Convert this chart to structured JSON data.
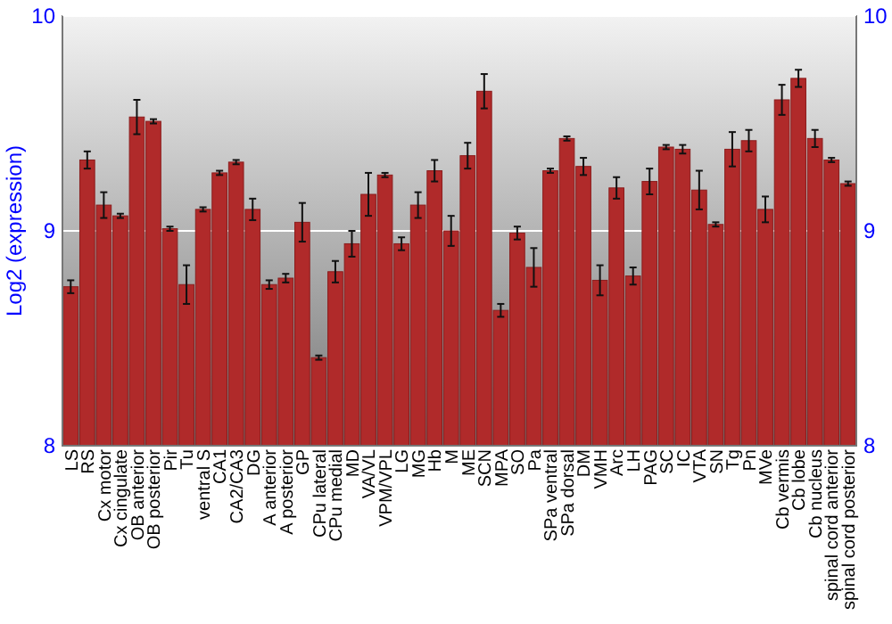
{
  "chart_data": {
    "type": "bar",
    "ylabel": "Log2 (expression)",
    "categories": [
      "LS",
      "RS",
      "Cx motor",
      "Cx cingulate",
      "OB anterior",
      "OB posterior",
      "Pir",
      "Tu",
      "ventral S",
      "CA1",
      "CA2/CA3",
      "DG",
      "A anterior",
      "A posterior",
      "GP",
      "CPu lateral",
      "CPu medial",
      "MD",
      "VA/VL",
      "VPM/VPL",
      "LG",
      "MG",
      "Hb",
      "M",
      "ME",
      "SCN",
      "MPA",
      "SO",
      "Pa",
      "SPa ventral",
      "SPa dorsal",
      "DM",
      "VMH",
      "Arc",
      "LH",
      "PAG",
      "SC",
      "IC",
      "VTA",
      "SN",
      "Tg",
      "Pn",
      "MVe",
      "Cb vermis",
      "Cb lobe",
      "Cb nucleus",
      "spinal cord anterior",
      "spinal cord posterior"
    ],
    "values": [
      8.74,
      9.33,
      9.12,
      9.07,
      9.53,
      9.51,
      9.01,
      8.75,
      9.1,
      9.27,
      9.32,
      9.1,
      8.75,
      8.78,
      9.04,
      8.41,
      8.81,
      8.94,
      9.17,
      9.26,
      8.94,
      9.12,
      9.28,
      9.0,
      9.35,
      9.65,
      8.63,
      8.99,
      8.83,
      9.28,
      9.43,
      9.3,
      8.77,
      9.2,
      8.79,
      9.23,
      9.39,
      9.38,
      9.19,
      9.03,
      9.38,
      9.42,
      9.1,
      9.61,
      9.71,
      9.43,
      9.33,
      9.22
    ],
    "errors": [
      0.03,
      0.04,
      0.06,
      0.01,
      0.08,
      0.01,
      0.01,
      0.09,
      0.01,
      0.01,
      0.01,
      0.05,
      0.02,
      0.02,
      0.09,
      0.01,
      0.05,
      0.06,
      0.1,
      0.01,
      0.03,
      0.06,
      0.05,
      0.07,
      0.06,
      0.08,
      0.03,
      0.03,
      0.09,
      0.01,
      0.01,
      0.04,
      0.07,
      0.05,
      0.04,
      0.06,
      0.01,
      0.02,
      0.09,
      0.01,
      0.08,
      0.05,
      0.06,
      0.07,
      0.04,
      0.04,
      0.01,
      0.01
    ],
    "color": "#b02a2a",
    "ylim": [
      8,
      10
    ],
    "yticks": [
      8,
      9,
      10
    ],
    "y2lim": [
      8,
      10
    ],
    "y2ticks": [
      8,
      9,
      10
    ],
    "grid": "y"
  }
}
